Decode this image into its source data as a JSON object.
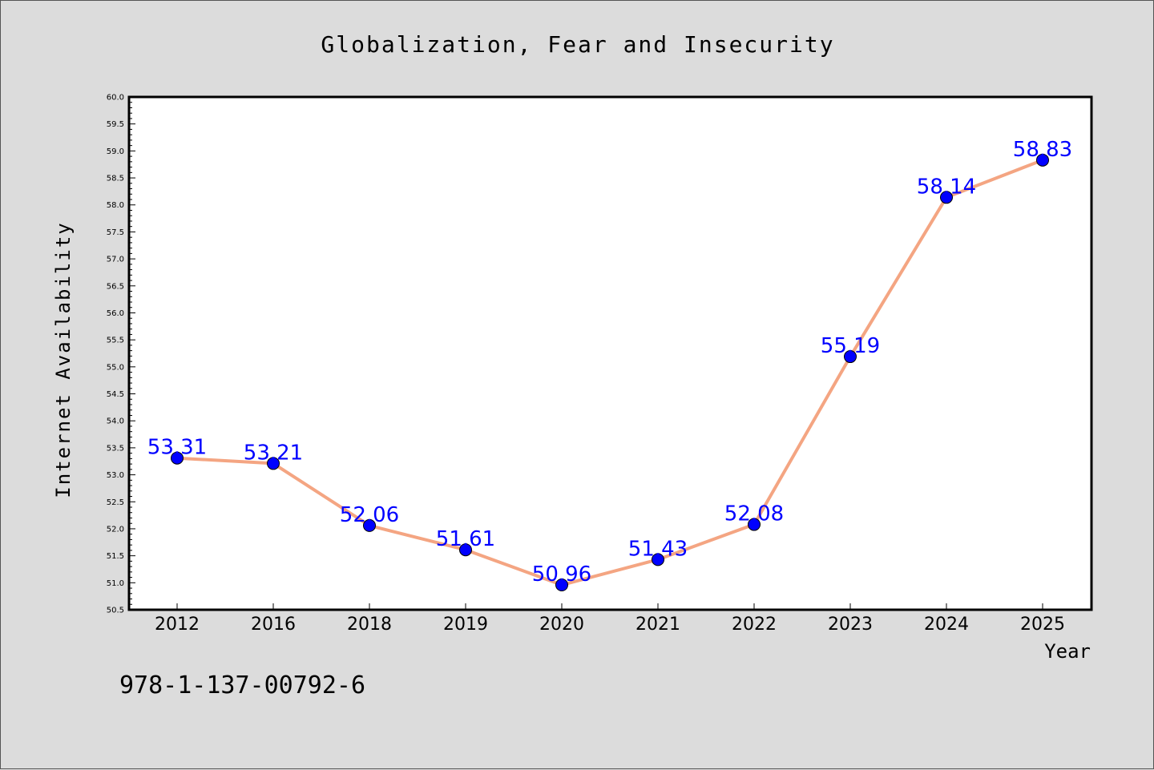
{
  "page": {
    "isbn": "978-1-137-00792-6"
  },
  "chart_data": {
    "type": "line",
    "title": "Globalization, Fear and Insecurity",
    "xlabel": "Year",
    "ylabel": "Internet Availability",
    "categories": [
      "2012",
      "2016",
      "2018",
      "2019",
      "2020",
      "2021",
      "2022",
      "2023",
      "2024",
      "2025"
    ],
    "series": [
      {
        "values": [
          53.31,
          53.21,
          52.06,
          51.61,
          50.96,
          51.43,
          52.08,
          55.19,
          58.14,
          58.83
        ],
        "labels": [
          "53.31",
          "53.21",
          "52.06",
          "51.61",
          "50.96",
          "51.43",
          "52.08",
          "55.19",
          "58.14",
          "58.83"
        ],
        "line_color": "#f4a582",
        "marker_color": "#0000ff",
        "label_color": "#0000ff"
      }
    ],
    "ylim": [
      50.5,
      60.0
    ],
    "yticks": [
      "50.5",
      "51.0",
      "51.5",
      "52.0",
      "52.5",
      "53.0",
      "53.5",
      "54.0",
      "54.5",
      "55.0",
      "55.5",
      "56.0",
      "56.5",
      "57.0",
      "57.5",
      "58.0",
      "58.5",
      "59.0",
      "59.5",
      "60.0"
    ],
    "grid": false,
    "legend": "none"
  }
}
